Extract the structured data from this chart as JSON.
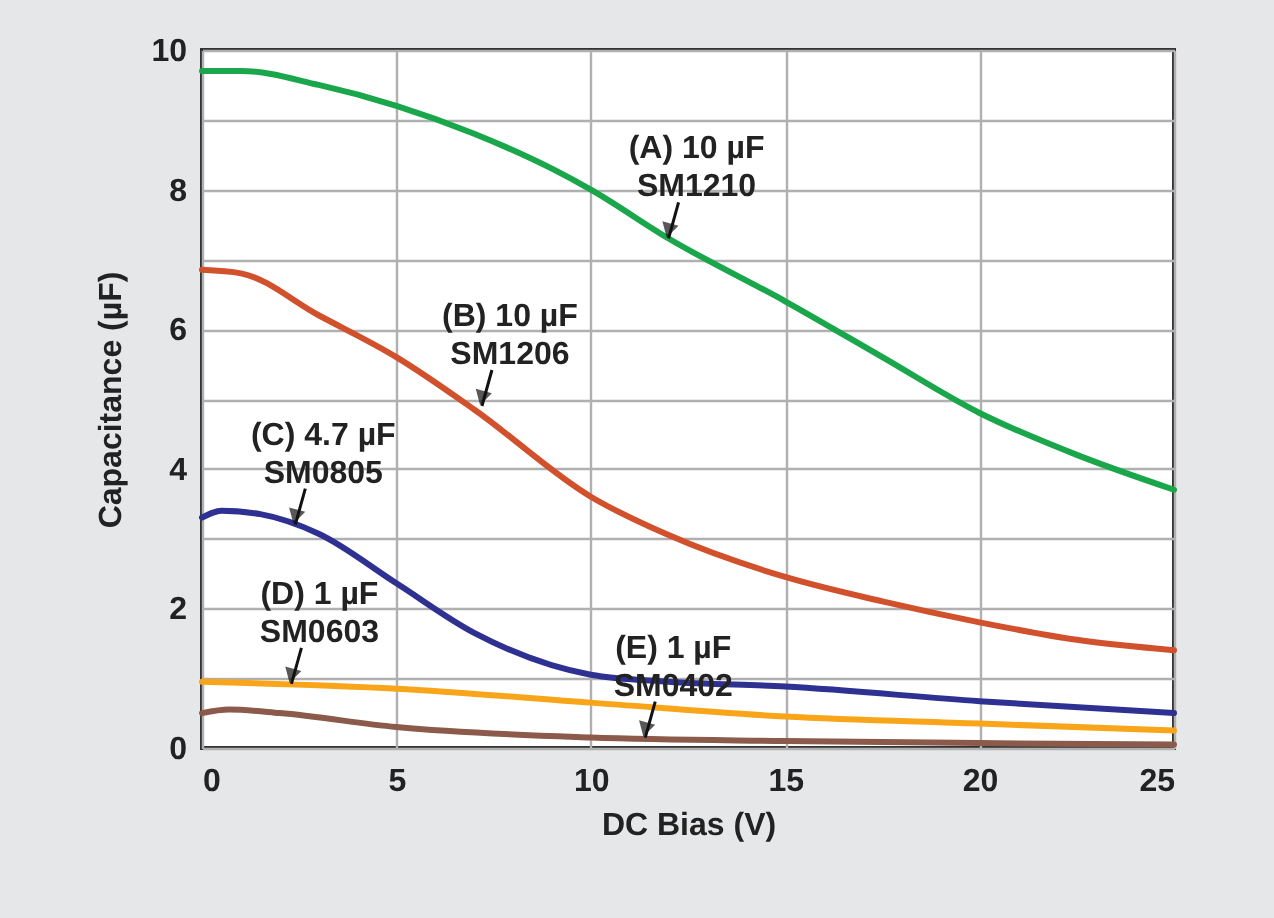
{
  "chart_data": {
    "type": "line",
    "xlabel": "DC Bias (V)",
    "ylabel": "Capacitance (µF)",
    "xlim": [
      0,
      25
    ],
    "xticks": [
      0,
      5,
      10,
      15,
      20,
      25
    ],
    "ylim": [
      0,
      10
    ],
    "yticks": [
      0,
      {
        "value": 1,
        "label": null
      },
      2,
      {
        "value": 3,
        "label": null
      },
      4,
      {
        "value": 5,
        "label": null
      },
      6,
      {
        "value": 7,
        "label": null
      },
      8,
      {
        "value": 9,
        "label": null
      },
      10
    ],
    "grid": true,
    "legend": false,
    "marker": "none",
    "line_style": "solid",
    "series": [
      {
        "color": "#1aa64a",
        "x": [
          0,
          1,
          3,
          5,
          7,
          9,
          10,
          12,
          15,
          17.5,
          20,
          22.5,
          25
        ],
        "values": [
          9.7,
          9.7,
          9.5,
          9.2,
          8.8,
          8.3,
          8.0,
          7.3,
          6.4,
          5.6,
          4.8,
          4.2,
          3.7
        ]
      },
      {
        "color": "#d2512d",
        "x": [
          0,
          1,
          3,
          5,
          7,
          10,
          12,
          15,
          17.5,
          20,
          22.5,
          25
        ],
        "values": [
          6.85,
          6.8,
          6.2,
          5.6,
          4.85,
          3.6,
          3.05,
          2.45,
          2.1,
          1.8,
          1.55,
          1.4
        ]
      },
      {
        "color": "#2e3192",
        "x": [
          0,
          0.5,
          1.5,
          3,
          5,
          7,
          10,
          12,
          15,
          20,
          25
        ],
        "values": [
          3.3,
          3.4,
          3.35,
          3.07,
          2.36,
          1.65,
          1.05,
          0.95,
          0.88,
          0.67,
          0.5
        ]
      },
      {
        "color": "#f9a51a",
        "x": [
          0,
          5,
          10,
          15,
          20,
          25
        ],
        "values": [
          0.95,
          0.85,
          0.65,
          0.45,
          0.35,
          0.25
        ]
      },
      {
        "color": "#8b5a4a",
        "x": [
          0,
          0.7,
          2,
          5,
          10,
          15,
          20,
          25
        ],
        "values": [
          0.5,
          0.55,
          0.5,
          0.3,
          0.15,
          0.1,
          0.07,
          0.05
        ]
      }
    ],
    "annotations": [
      {
        "text": "(A) 10 µF\nSM1210",
        "x": 12,
        "y": 7.3
      },
      {
        "text": "(B) 10 µF\nSM1206",
        "x": 7.2,
        "y": 4.9
      },
      {
        "text": "(C) 4.7 µF\nSM0805",
        "x": 2.4,
        "y": 3.2
      },
      {
        "text": "(D) 1 µF\nSM0603",
        "x": 2.3,
        "y": 0.92
      },
      {
        "text": "(E) 1 µF\nSM0402",
        "x": 11.4,
        "y": 0.15
      }
    ]
  }
}
